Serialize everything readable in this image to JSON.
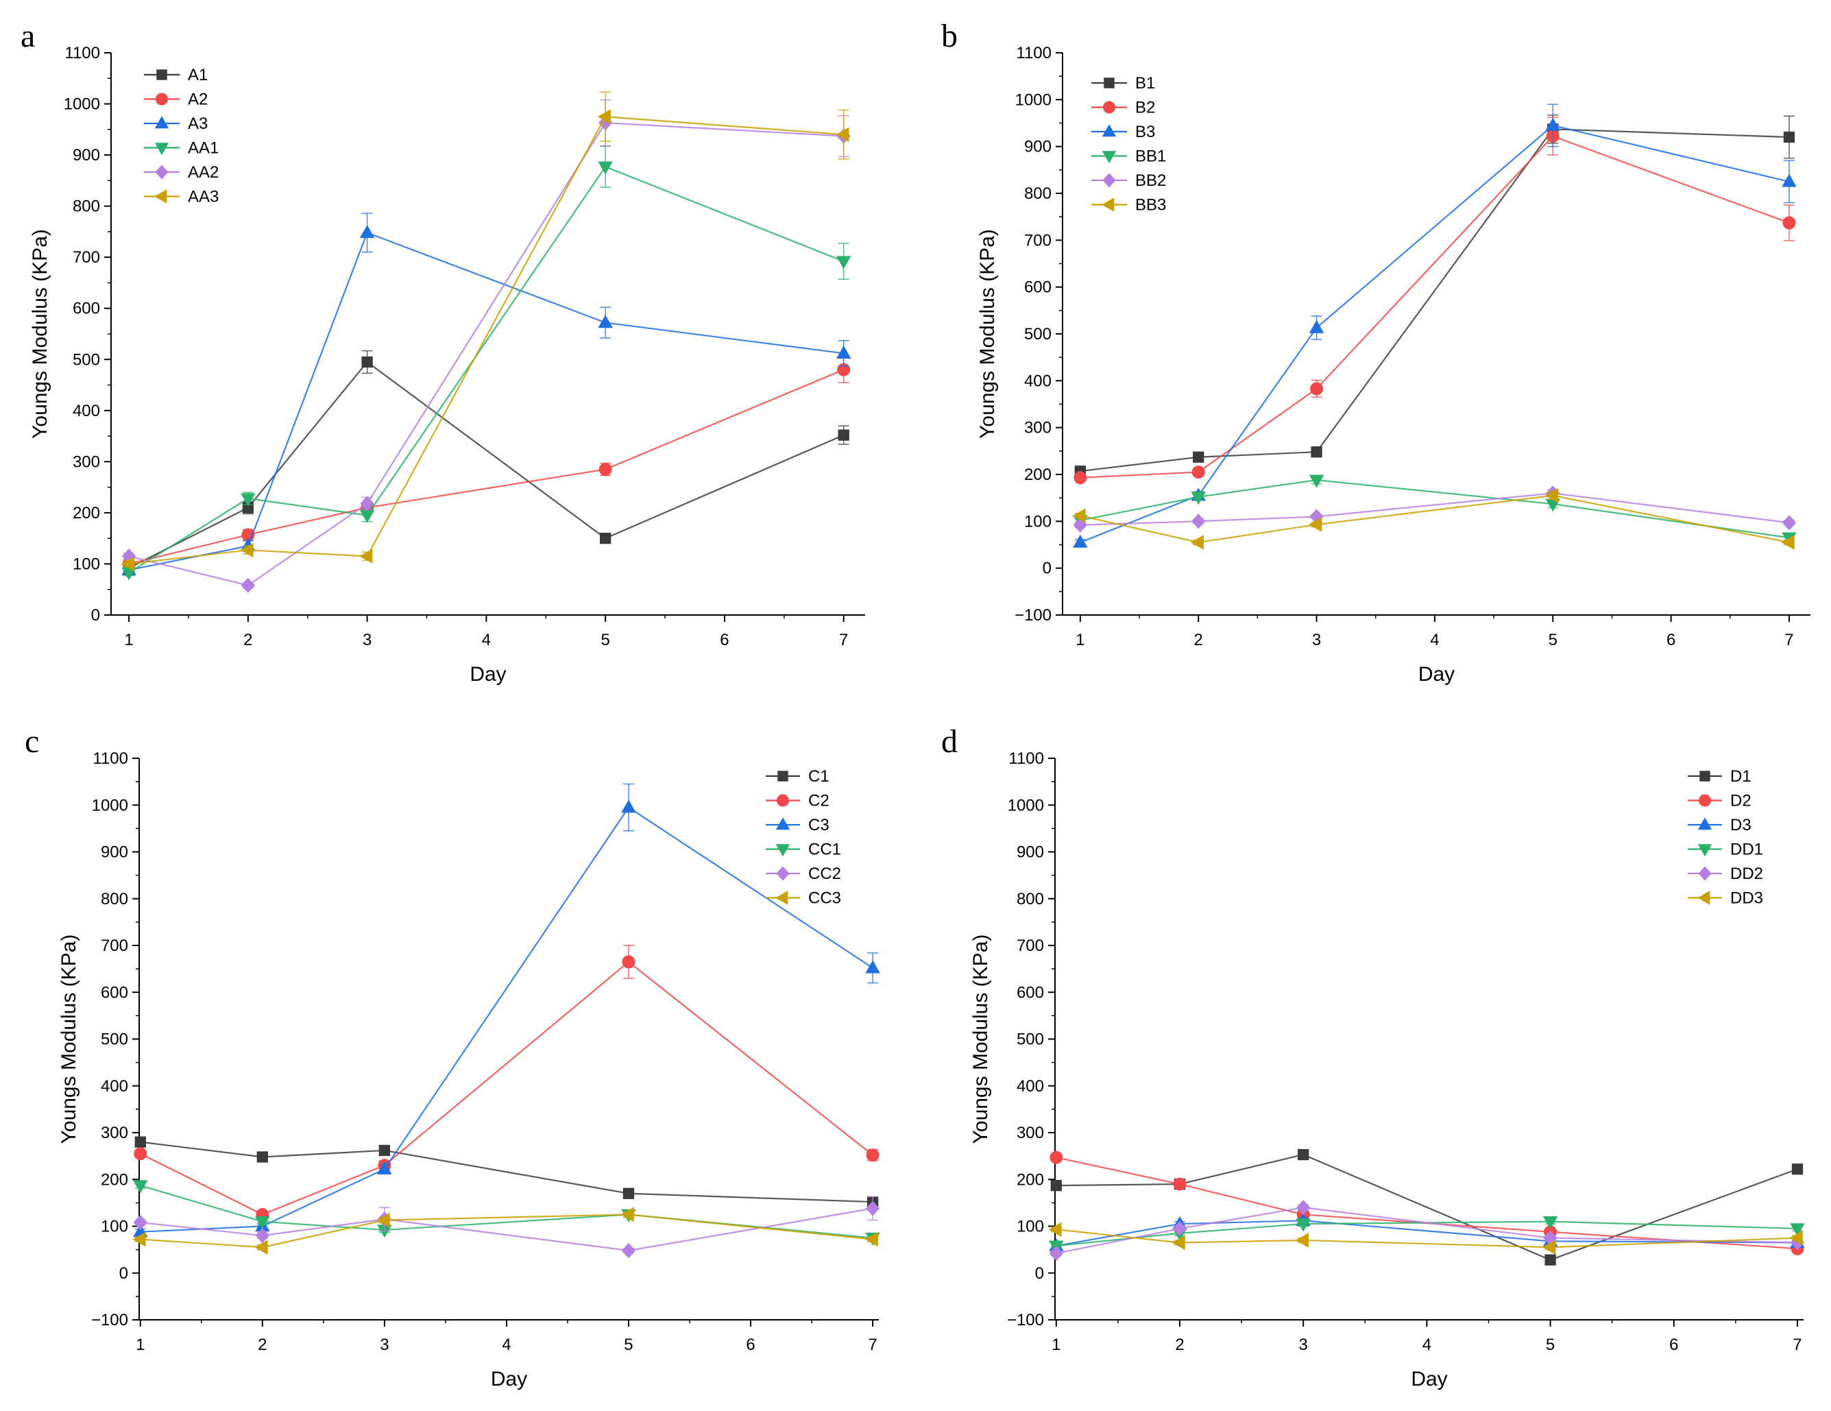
{
  "chart_data": [
    {
      "panel": "a",
      "type": "line",
      "xlabel": "Day",
      "ylabel": "Youngs Modulus (KPa)",
      "x_ticks": [
        1,
        2,
        3,
        4,
        5,
        6,
        7
      ],
      "y_ticks": [
        0,
        100,
        200,
        300,
        400,
        500,
        600,
        700,
        800,
        900,
        1000,
        1100
      ],
      "xlim": [
        0.85,
        7.18
      ],
      "ylim": [
        0,
        1100
      ],
      "legend_position": "top-left",
      "x": [
        1,
        2,
        3,
        5,
        7
      ],
      "series": [
        {
          "name": "A1",
          "marker": "square",
          "color": "#3b3b3b",
          "values": [
            92,
            210,
            495,
            150,
            352
          ],
          "errors": [
            8,
            12,
            22,
            8,
            18
          ]
        },
        {
          "name": "A2",
          "marker": "circle",
          "color": "#f04848",
          "values": [
            100,
            157,
            210,
            285,
            480
          ],
          "errors": [
            6,
            10,
            10,
            12,
            25
          ]
        },
        {
          "name": "A3",
          "marker": "triangle-up",
          "color": "#1f6fe0",
          "values": [
            88,
            135,
            748,
            572,
            512
          ],
          "errors": [
            6,
            10,
            38,
            30,
            25
          ]
        },
        {
          "name": "AA1",
          "marker": "triangle-down",
          "color": "#2ab06a",
          "values": [
            83,
            228,
            195,
            877,
            692
          ],
          "errors": [
            6,
            12,
            12,
            40,
            35
          ]
        },
        {
          "name": "AA2",
          "marker": "diamond",
          "color": "#b57ee0",
          "values": [
            115,
            58,
            218,
            963,
            937
          ],
          "errors": [
            6,
            6,
            12,
            45,
            40
          ]
        },
        {
          "name": "AA3",
          "marker": "triangle-left",
          "color": "#c9a000",
          "values": [
            100,
            127,
            115,
            975,
            940
          ],
          "errors": [
            6,
            8,
            8,
            48,
            48
          ]
        }
      ]
    },
    {
      "panel": "b",
      "type": "line",
      "xlabel": "Day",
      "ylabel": "Youngs Modulus (KPa)",
      "x_ticks": [
        1,
        2,
        3,
        4,
        5,
        6,
        7
      ],
      "y_ticks": [
        -100,
        0,
        100,
        200,
        300,
        400,
        500,
        600,
        700,
        800,
        900,
        1000,
        1100
      ],
      "xlim": [
        0.85,
        7.18
      ],
      "ylim": [
        -100,
        1100
      ],
      "legend_position": "top-left",
      "x": [
        1,
        2,
        3,
        5,
        7
      ],
      "series": [
        {
          "name": "B1",
          "marker": "square",
          "color": "#3b3b3b",
          "values": [
            207,
            237,
            248,
            937,
            920
          ],
          "errors": [
            6,
            8,
            8,
            30,
            45
          ]
        },
        {
          "name": "B2",
          "marker": "circle",
          "color": "#f04848",
          "values": [
            193,
            205,
            383,
            922,
            737
          ],
          "errors": [
            6,
            8,
            18,
            40,
            38
          ]
        },
        {
          "name": "B3",
          "marker": "triangle-up",
          "color": "#1f6fe0",
          "values": [
            55,
            155,
            513,
            945,
            825
          ],
          "errors": [
            6,
            8,
            25,
            45,
            45
          ]
        },
        {
          "name": "BB1",
          "marker": "triangle-down",
          "color": "#2ab06a",
          "values": [
            102,
            152,
            188,
            137,
            65
          ],
          "errors": [
            5,
            6,
            8,
            8,
            5
          ]
        },
        {
          "name": "BB2",
          "marker": "diamond",
          "color": "#b57ee0",
          "values": [
            92,
            100,
            110,
            160,
            97
          ],
          "errors": [
            5,
            5,
            5,
            8,
            5
          ]
        },
        {
          "name": "BB3",
          "marker": "triangle-left",
          "color": "#c9a000",
          "values": [
            112,
            55,
            93,
            155,
            55
          ],
          "errors": [
            5,
            5,
            5,
            8,
            5
          ]
        }
      ]
    },
    {
      "panel": "c",
      "type": "line",
      "xlabel": "Day",
      "ylabel": "Youngs Modulus (KPa)",
      "x_ticks": [
        1,
        2,
        3,
        4,
        5,
        6,
        7
      ],
      "y_ticks": [
        -100,
        0,
        100,
        200,
        300,
        400,
        500,
        600,
        700,
        800,
        900,
        1000,
        1100
      ],
      "xlim": [
        0.99,
        7.05
      ],
      "ylim": [
        -100,
        1100
      ],
      "legend_position": "top-right",
      "x": [
        1,
        2,
        3,
        5,
        7
      ],
      "series": [
        {
          "name": "C1",
          "marker": "square",
          "color": "#3b3b3b",
          "values": [
            280,
            248,
            262,
            170,
            152
          ],
          "errors": [
            8,
            8,
            8,
            8,
            8
          ]
        },
        {
          "name": "C2",
          "marker": "circle",
          "color": "#f04848",
          "values": [
            255,
            125,
            230,
            665,
            252
          ],
          "errors": [
            8,
            6,
            10,
            35,
            12
          ]
        },
        {
          "name": "C3",
          "marker": "triangle-up",
          "color": "#1f6fe0",
          "values": [
            88,
            100,
            222,
            995,
            652
          ],
          "errors": [
            6,
            6,
            10,
            50,
            32
          ]
        },
        {
          "name": "CC1",
          "marker": "triangle-down",
          "color": "#2ab06a",
          "values": [
            187,
            110,
            92,
            125,
            75
          ],
          "errors": [
            6,
            6,
            5,
            6,
            5
          ]
        },
        {
          "name": "CC2",
          "marker": "diamond",
          "color": "#b57ee0",
          "values": [
            108,
            80,
            115,
            48,
            138
          ],
          "errors": [
            6,
            6,
            25,
            5,
            25
          ]
        },
        {
          "name": "CC3",
          "marker": "triangle-left",
          "color": "#c9a000",
          "values": [
            72,
            55,
            113,
            125,
            72
          ],
          "errors": [
            5,
            5,
            6,
            6,
            5
          ]
        }
      ]
    },
    {
      "panel": "d",
      "type": "line",
      "xlabel": "Day",
      "ylabel": "Youngs Modulus (KPa)",
      "x_ticks": [
        1,
        2,
        3,
        4,
        5,
        6,
        7
      ],
      "y_ticks": [
        -100,
        0,
        100,
        200,
        300,
        400,
        500,
        600,
        700,
        800,
        900,
        1000,
        1100
      ],
      "xlim": [
        0.99,
        7.05
      ],
      "ylim": [
        -100,
        1100
      ],
      "legend_position": "top-right",
      "x": [
        1,
        2,
        3,
        5,
        7
      ],
      "series": [
        {
          "name": "D1",
          "marker": "square",
          "color": "#3b3b3b",
          "values": [
            187,
            190,
            253,
            28,
            222
          ],
          "errors": [
            6,
            6,
            6,
            5,
            6
          ]
        },
        {
          "name": "D2",
          "marker": "circle",
          "color": "#f04848",
          "values": [
            247,
            190,
            125,
            88,
            52
          ],
          "errors": [
            6,
            6,
            6,
            5,
            5
          ]
        },
        {
          "name": "D3",
          "marker": "triangle-up",
          "color": "#1f6fe0",
          "values": [
            58,
            105,
            112,
            68,
            65
          ],
          "errors": [
            5,
            5,
            5,
            5,
            5
          ]
        },
        {
          "name": "DD1",
          "marker": "triangle-down",
          "color": "#2ab06a",
          "values": [
            58,
            85,
            105,
            110,
            95
          ],
          "errors": [
            5,
            5,
            5,
            5,
            5
          ]
        },
        {
          "name": "DD2",
          "marker": "diamond",
          "color": "#b57ee0",
          "values": [
            42,
            95,
            140,
            75,
            65
          ],
          "errors": [
            5,
            5,
            6,
            5,
            5
          ]
        },
        {
          "name": "DD3",
          "marker": "triangle-left",
          "color": "#c9a000",
          "values": [
            93,
            65,
            70,
            55,
            75
          ],
          "errors": [
            5,
            5,
            5,
            5,
            5
          ]
        }
      ]
    }
  ]
}
